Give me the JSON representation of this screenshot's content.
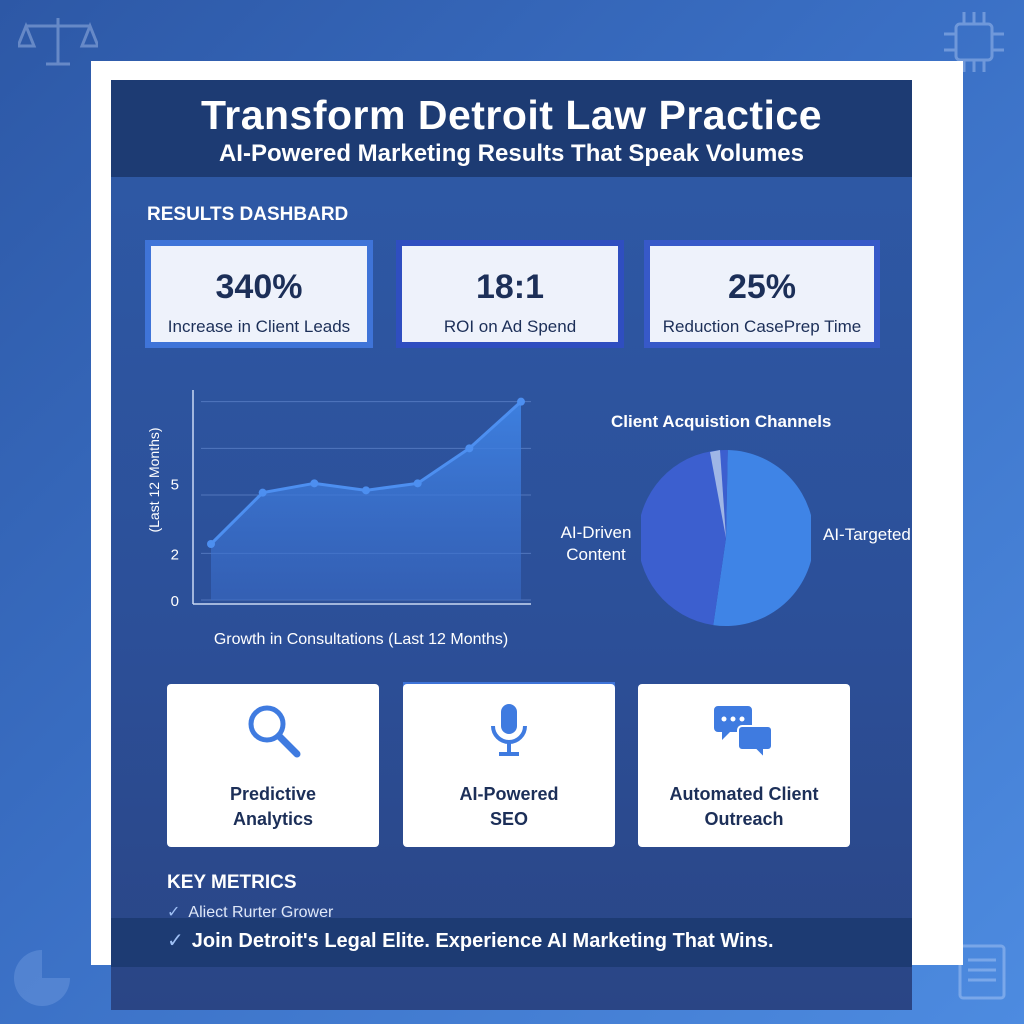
{
  "header": {
    "title": "Transform Detroit Law Practice",
    "subtitle": "AI-Powered Marketing Results That Speak Volumes"
  },
  "dashboard": {
    "label": "RESULTS DASHBARD",
    "stats": [
      {
        "value": "340%",
        "label": "Increase in Client Leads"
      },
      {
        "value": "18:1",
        "label": "ROI on Ad Spend"
      },
      {
        "value": "25%",
        "label": "Reduction CasePrep Time"
      }
    ]
  },
  "chart_data": [
    {
      "type": "area",
      "ylabel": "(Last 12 Months)",
      "xlabel": "Growth in Consultations (Last 12 Months)",
      "yticks": [
        "0",
        "2",
        "5"
      ],
      "x": [
        1,
        2,
        3,
        4,
        5,
        6,
        7
      ],
      "values": [
        2.4,
        4.6,
        5.0,
        4.7,
        5.0,
        6.5,
        8.5
      ],
      "grid": true
    },
    {
      "type": "pie",
      "title": "Client Acquistion Channels",
      "labels": [
        "AI-Driven Content",
        "AI-Targeted Ardech Ads"
      ],
      "values": [
        52,
        48
      ],
      "colors": [
        "#3c5fcf",
        "#3f84e6"
      ]
    }
  ],
  "features": [
    {
      "icon": "search-icon",
      "line1": "Predictive",
      "line2": "Analytics"
    },
    {
      "icon": "microphone-icon",
      "line1": "AI-Powered",
      "line2": "SEO"
    },
    {
      "icon": "chat-bubbles-icon",
      "line1": "Automated Client",
      "line2": "Outreach"
    }
  ],
  "key_metrics": {
    "title": "KEY METRICS",
    "item": "Aliect Rurter Grower"
  },
  "cta": "Join Detroit's Legal Elite. Experience AI Marketing That Wins.",
  "colors": {
    "accent": "#3f74d8",
    "header_bg": "#1d3b73",
    "text_dark": "#1c2f58"
  }
}
